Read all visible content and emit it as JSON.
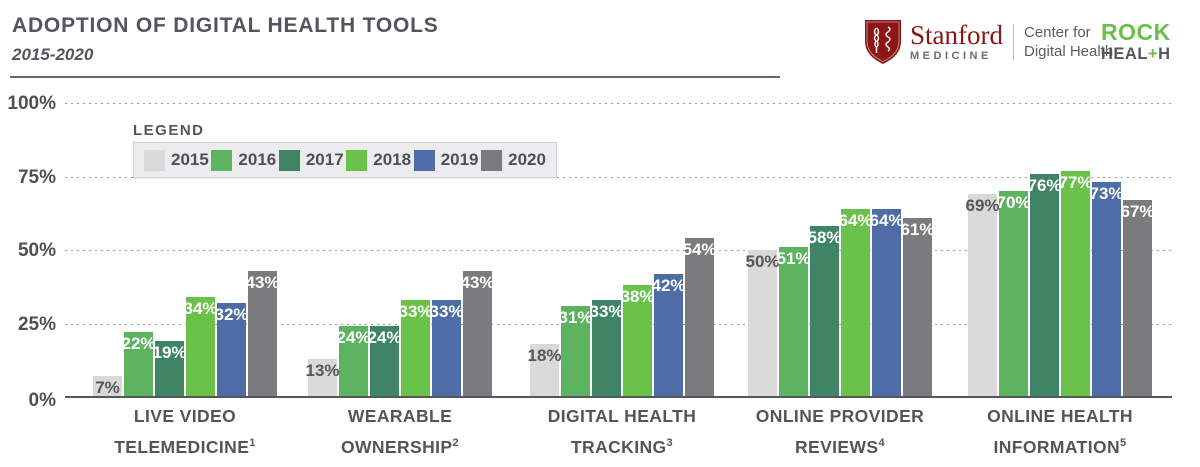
{
  "header": {
    "title": "ADOPTION OF DIGITAL HEALTH TOOLS",
    "subtitle": "2015-2020",
    "logos": {
      "stanford_name": "Stanford",
      "stanford_sub": "MEDICINE",
      "stanford_center_line1": "Center for",
      "stanford_center_line2": "Digital Health",
      "stanford_red": "#8c1515",
      "rock_line1": "ROCK",
      "rock_heal": "HEAL",
      "rock_plus": "+",
      "rock_h": "H",
      "rock_green": "#6abf4a"
    }
  },
  "legend": {
    "title": "LEGEND"
  },
  "chart_data": {
    "type": "bar",
    "title": "ADOPTION OF DIGITAL HEALTH TOOLS",
    "subtitle": "2015-2020",
    "categories": [
      {
        "lines": [
          "LIVE VIDEO",
          "TELEMEDICINE"
        ],
        "footnote": "1"
      },
      {
        "lines": [
          "WEARABLE",
          "OWNERSHIP"
        ],
        "footnote": "2"
      },
      {
        "lines": [
          "DIGITAL HEALTH",
          "TRACKING"
        ],
        "footnote": "3"
      },
      {
        "lines": [
          "ONLINE PROVIDER",
          "REVIEWS"
        ],
        "footnote": "4"
      },
      {
        "lines": [
          "ONLINE HEALTH",
          "INFORMATION"
        ],
        "footnote": "5"
      }
    ],
    "series": [
      {
        "name": "2015",
        "color": "#d9d9d9",
        "label_color": "#55565a",
        "values": [
          7,
          13,
          18,
          50,
          69
        ]
      },
      {
        "name": "2016",
        "color": "#5db360",
        "label_color": "#ffffff",
        "values": [
          22,
          24,
          31,
          51,
          70
        ]
      },
      {
        "name": "2017",
        "color": "#3f8565",
        "label_color": "#ffffff",
        "values": [
          19,
          24,
          33,
          58,
          76
        ]
      },
      {
        "name": "2018",
        "color": "#6ac24b",
        "label_color": "#ffffff",
        "values": [
          34,
          33,
          38,
          64,
          77
        ]
      },
      {
        "name": "2019",
        "color": "#4e6da6",
        "label_color": "#ffffff",
        "values": [
          32,
          33,
          42,
          64,
          73
        ]
      },
      {
        "name": "2020",
        "color": "#7b7b7d",
        "label_color": "#ffffff",
        "values": [
          43,
          43,
          54,
          61,
          67
        ]
      }
    ],
    "value_suffix": "%",
    "yticks": [
      {
        "label": "0%",
        "value": 0
      },
      {
        "label": "25%",
        "value": 25
      },
      {
        "label": "50%",
        "value": 50
      },
      {
        "label": "75%",
        "value": 75
      },
      {
        "label": "100%",
        "value": 100
      }
    ],
    "ylim": [
      0,
      100
    ],
    "grid": "horizontal-dotted",
    "legend_position": "top-left"
  }
}
